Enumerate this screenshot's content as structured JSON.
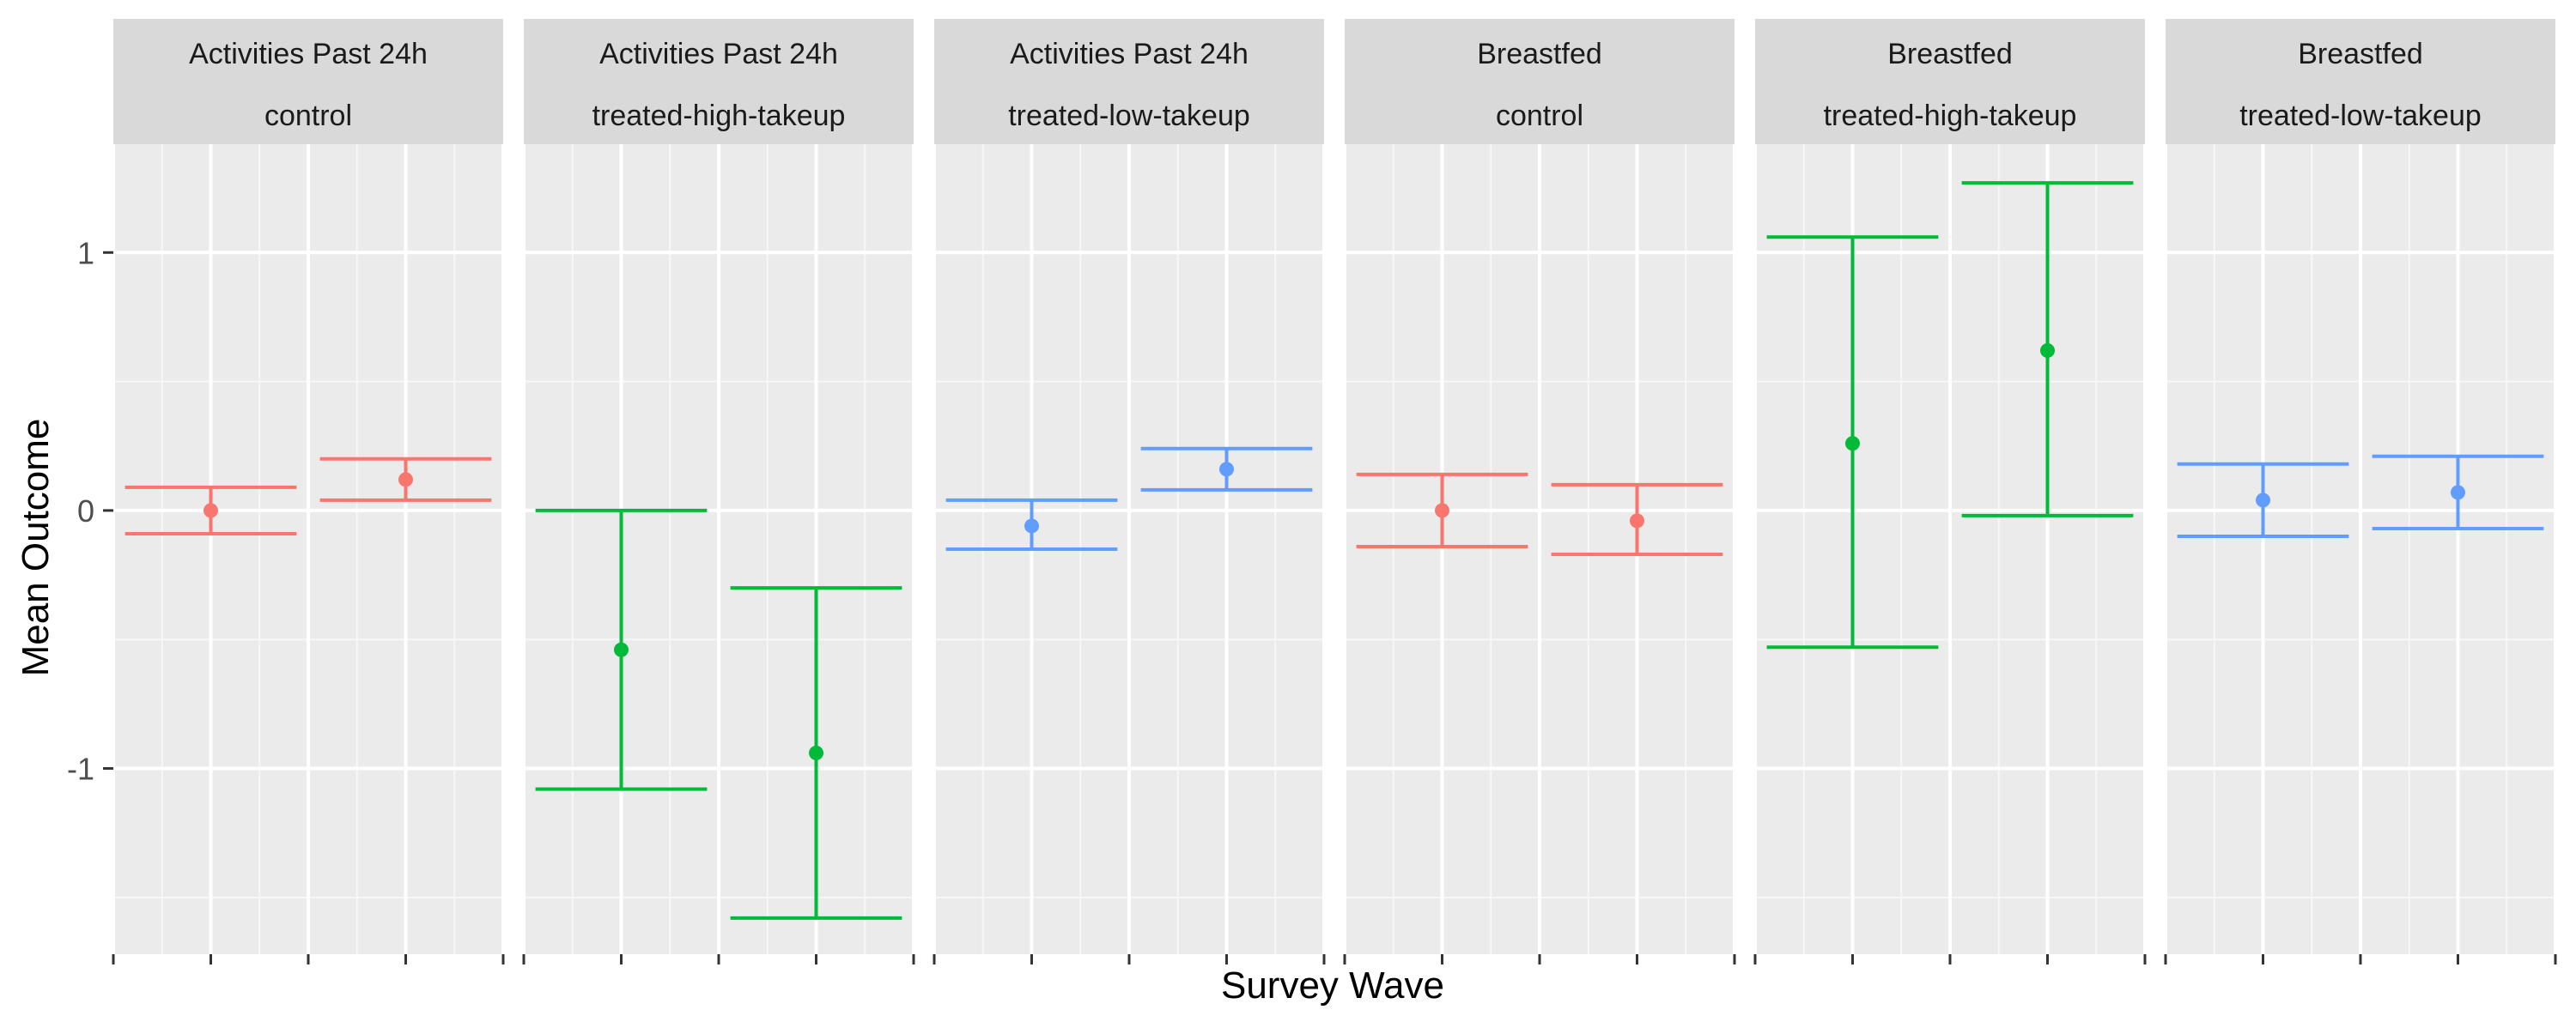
{
  "chart_data": {
    "type": "errorbar",
    "xlabel": "Survey Wave",
    "ylabel": "Mean Outcome",
    "y_ticks": [
      1,
      0,
      -1
    ],
    "y_tick_labels": [
      "1",
      "0",
      "-1"
    ],
    "ylim": [
      -1.72,
      1.42
    ],
    "x_tick_labels": [
      "",
      ""
    ],
    "grid": true,
    "legend": "none",
    "group_colors": {
      "control": "#F8766D",
      "treated-high-takeup": "#00BA38",
      "treated-low-takeup": "#619CFF"
    },
    "panels": [
      {
        "strip_top": "Activities Past 24h",
        "strip_bottom": "control",
        "group": "control",
        "points": [
          {
            "wave": 1,
            "mean": 0.0,
            "lower": -0.09,
            "upper": 0.09
          },
          {
            "wave": 2,
            "mean": 0.12,
            "lower": 0.04,
            "upper": 0.2
          }
        ]
      },
      {
        "strip_top": "Activities Past 24h",
        "strip_bottom": "treated-high-takeup",
        "group": "treated-high-takeup",
        "points": [
          {
            "wave": 1,
            "mean": -0.54,
            "lower": -1.08,
            "upper": 0.0
          },
          {
            "wave": 2,
            "mean": -0.94,
            "lower": -1.58,
            "upper": -0.3
          }
        ]
      },
      {
        "strip_top": "Activities Past 24h",
        "strip_bottom": "treated-low-takeup",
        "group": "treated-low-takeup",
        "points": [
          {
            "wave": 1,
            "mean": -0.06,
            "lower": -0.15,
            "upper": 0.04
          },
          {
            "wave": 2,
            "mean": 0.16,
            "lower": 0.08,
            "upper": 0.24
          }
        ]
      },
      {
        "strip_top": "Breastfed",
        "strip_bottom": "control",
        "group": "control",
        "points": [
          {
            "wave": 1,
            "mean": 0.0,
            "lower": -0.14,
            "upper": 0.14
          },
          {
            "wave": 2,
            "mean": -0.04,
            "lower": -0.17,
            "upper": 0.1
          }
        ]
      },
      {
        "strip_top": "Breastfed",
        "strip_bottom": "treated-high-takeup",
        "group": "treated-high-takeup",
        "points": [
          {
            "wave": 1,
            "mean": 0.26,
            "lower": -0.53,
            "upper": 1.06
          },
          {
            "wave": 2,
            "mean": 0.62,
            "lower": -0.02,
            "upper": 1.27
          }
        ]
      },
      {
        "strip_top": "Breastfed",
        "strip_bottom": "treated-low-takeup",
        "group": "treated-low-takeup",
        "points": [
          {
            "wave": 1,
            "mean": 0.04,
            "lower": -0.1,
            "upper": 0.18
          },
          {
            "wave": 2,
            "mean": 0.07,
            "lower": -0.07,
            "upper": 0.21
          }
        ]
      }
    ]
  }
}
